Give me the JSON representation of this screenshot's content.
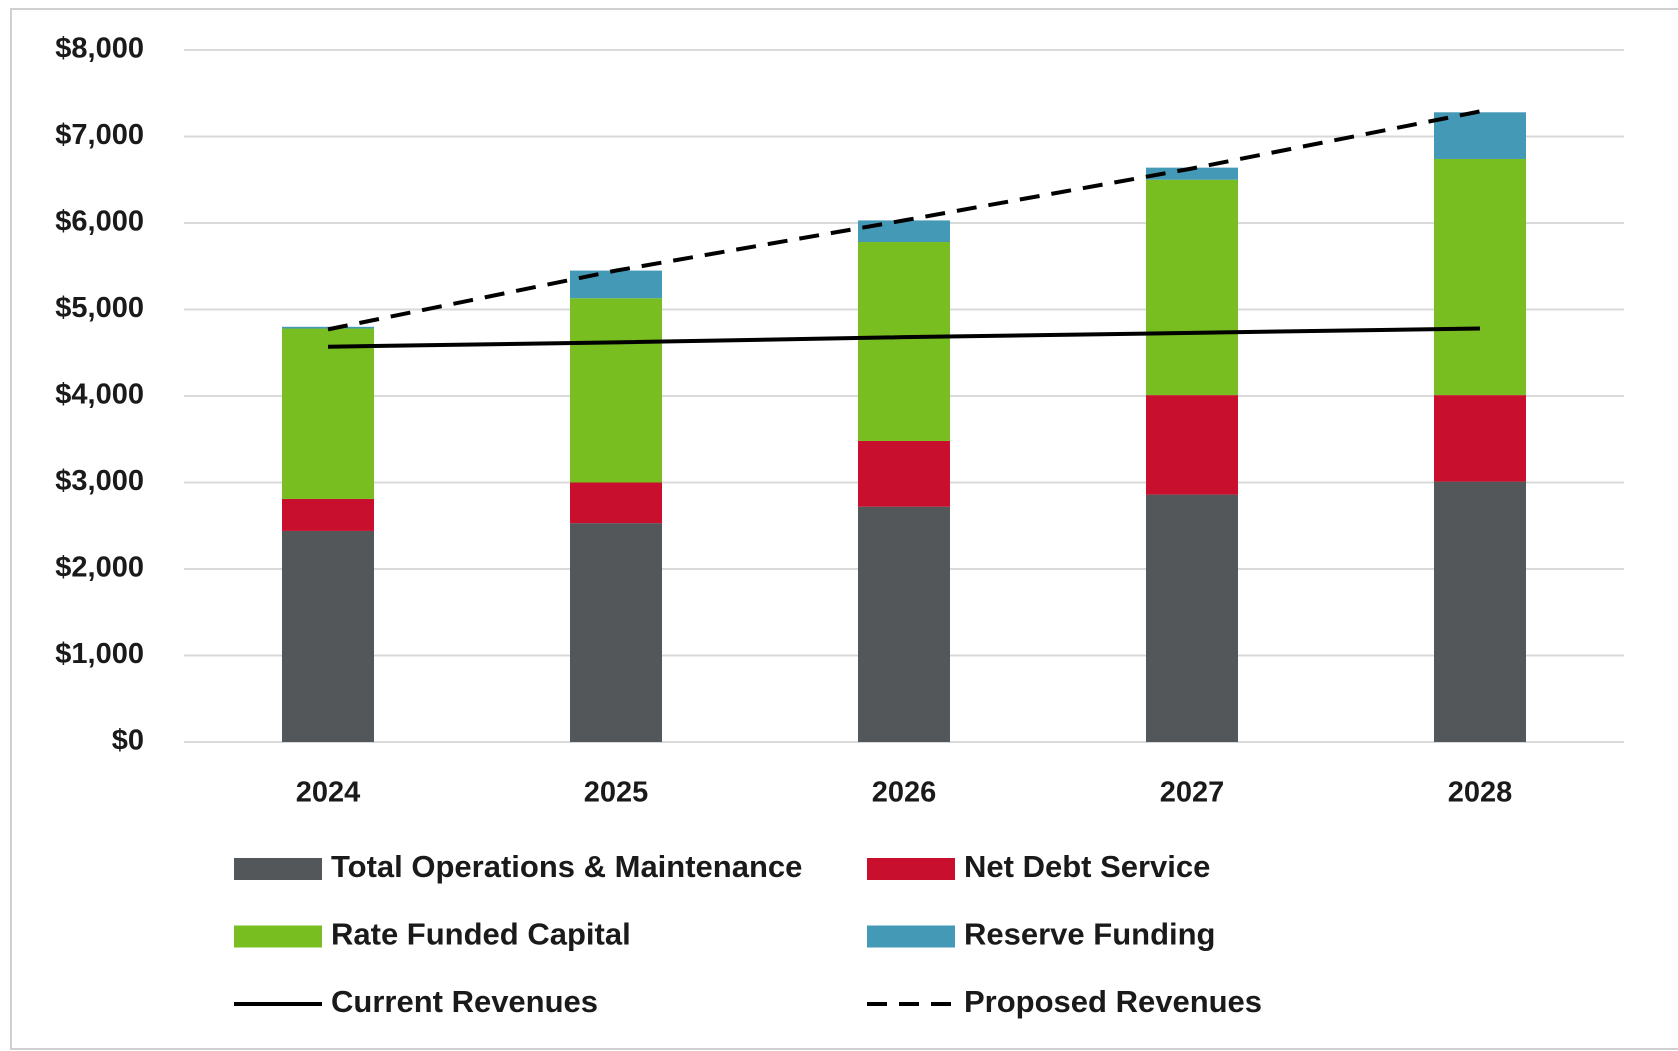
{
  "chart_data": {
    "type": "bar",
    "stacked": true,
    "categories": [
      "2024",
      "2025",
      "2026",
      "2027",
      "2028"
    ],
    "series": [
      {
        "name": "Total Operations & Maintenance",
        "color": "#54575a",
        "values": [
          2440,
          2530,
          2720,
          2860,
          3010
        ]
      },
      {
        "name": "Net Debt Service",
        "color": "#c8102e",
        "values": [
          370,
          470,
          760,
          1150,
          1000
        ]
      },
      {
        "name": "Rate Funded Capital",
        "color": "#78be20",
        "values": [
          1970,
          2130,
          2300,
          2490,
          2730
        ]
      },
      {
        "name": "Reserve Funding",
        "color": "#4499b7",
        "values": [
          20,
          320,
          250,
          140,
          540
        ]
      },
      {
        "name": "Current Revenues",
        "type": "line",
        "color": "#000000",
        "line_style": "solid",
        "values": [
          4570,
          4620,
          4680,
          4730,
          4780
        ]
      },
      {
        "name": "Proposed Revenues",
        "type": "line",
        "color": "#000000",
        "line_style": "dashed",
        "values": [
          4770,
          5450,
          6030,
          6630,
          7290
        ]
      }
    ],
    "ylim": [
      0,
      8000
    ],
    "yticks": [
      {
        "value": 0,
        "label": "$0"
      },
      {
        "value": 1000,
        "label": "$1,000"
      },
      {
        "value": 2000,
        "label": "$2,000"
      },
      {
        "value": 3000,
        "label": "$3,000"
      },
      {
        "value": 4000,
        "label": "$4,000"
      },
      {
        "value": 5000,
        "label": "$5,000"
      },
      {
        "value": 6000,
        "label": "$6,000"
      },
      {
        "value": 7000,
        "label": "$7,000"
      },
      {
        "value": 8000,
        "label": "$8,000"
      }
    ],
    "grid": true,
    "legend": "bottom"
  }
}
